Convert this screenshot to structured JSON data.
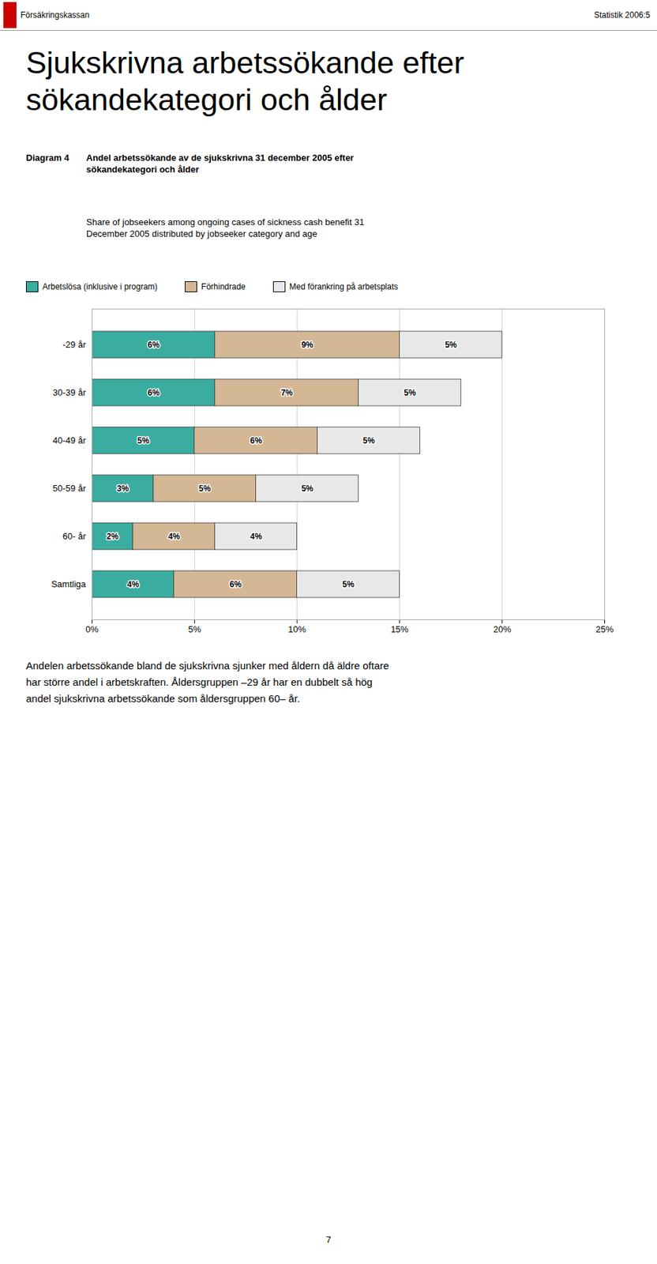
{
  "chart_data": {
    "type": "bar",
    "orientation": "horizontal",
    "stacked": true,
    "title": "Sjukskrivna arbetssökande efter\nsökandekategori och ålder",
    "subtitle": "Andel arbetssökande av de sjukskrivna 31 december 2005 efter\nsökandekategori och ålder",
    "annotations": [
      "Försäkringskassan",
      "Statistik 2006:5",
      "Diagram 4",
      "Share of jobseekers among ongoing cases of sickness cash benefit 31\nDecember 2005 distributed by jobseeker category and age",
      "Andelen arbetssökande bland de sjukskrivna sjunker med åldern då äldre oftare\nhar större andel i arbetskraften. Åldersgruppen –29 år har en dubbelt så hög\nandel sjukskrivna arbetssökande som åldersgruppen 60– år.",
      "7"
    ],
    "categories": [
      "-29 år",
      "30-39 år",
      "40-49 år",
      "50-59 år",
      "60- år",
      "Samtliga"
    ],
    "series": [
      {
        "name": "Arbetslösa (inklusive i program)",
        "color": "#3aada0",
        "values": [
          6,
          6,
          5,
          3,
          2,
          4
        ],
        "value_labels": [
          "6%",
          "6%",
          "5%",
          "3%",
          "2%",
          "4%"
        ]
      },
      {
        "name": "Förhindrade",
        "color": "#d4b896",
        "values": [
          9,
          7,
          6,
          5,
          4,
          6
        ],
        "value_labels": [
          "9%",
          "7%",
          "6%",
          "5%",
          "4%",
          "6%"
        ]
      },
      {
        "name": "Med förankring på arbetsplats",
        "color": "#e8e8e8",
        "values": [
          5,
          5,
          5,
          5,
          4,
          5
        ],
        "value_labels": [
          "5%",
          "5%",
          "5%",
          "5%",
          "4%",
          "5%"
        ]
      }
    ],
    "xlim": [
      0,
      25
    ],
    "xticks": [
      {
        "value": 0,
        "label": "0%"
      },
      {
        "value": 5,
        "label": "5%"
      },
      {
        "value": 10,
        "label": "10%"
      },
      {
        "value": 15,
        "label": "15%"
      },
      {
        "value": 20,
        "label": "20%"
      },
      {
        "value": 25,
        "label": "25%"
      }
    ],
    "grid": true,
    "legend": "top",
    "data_labels": true
  }
}
